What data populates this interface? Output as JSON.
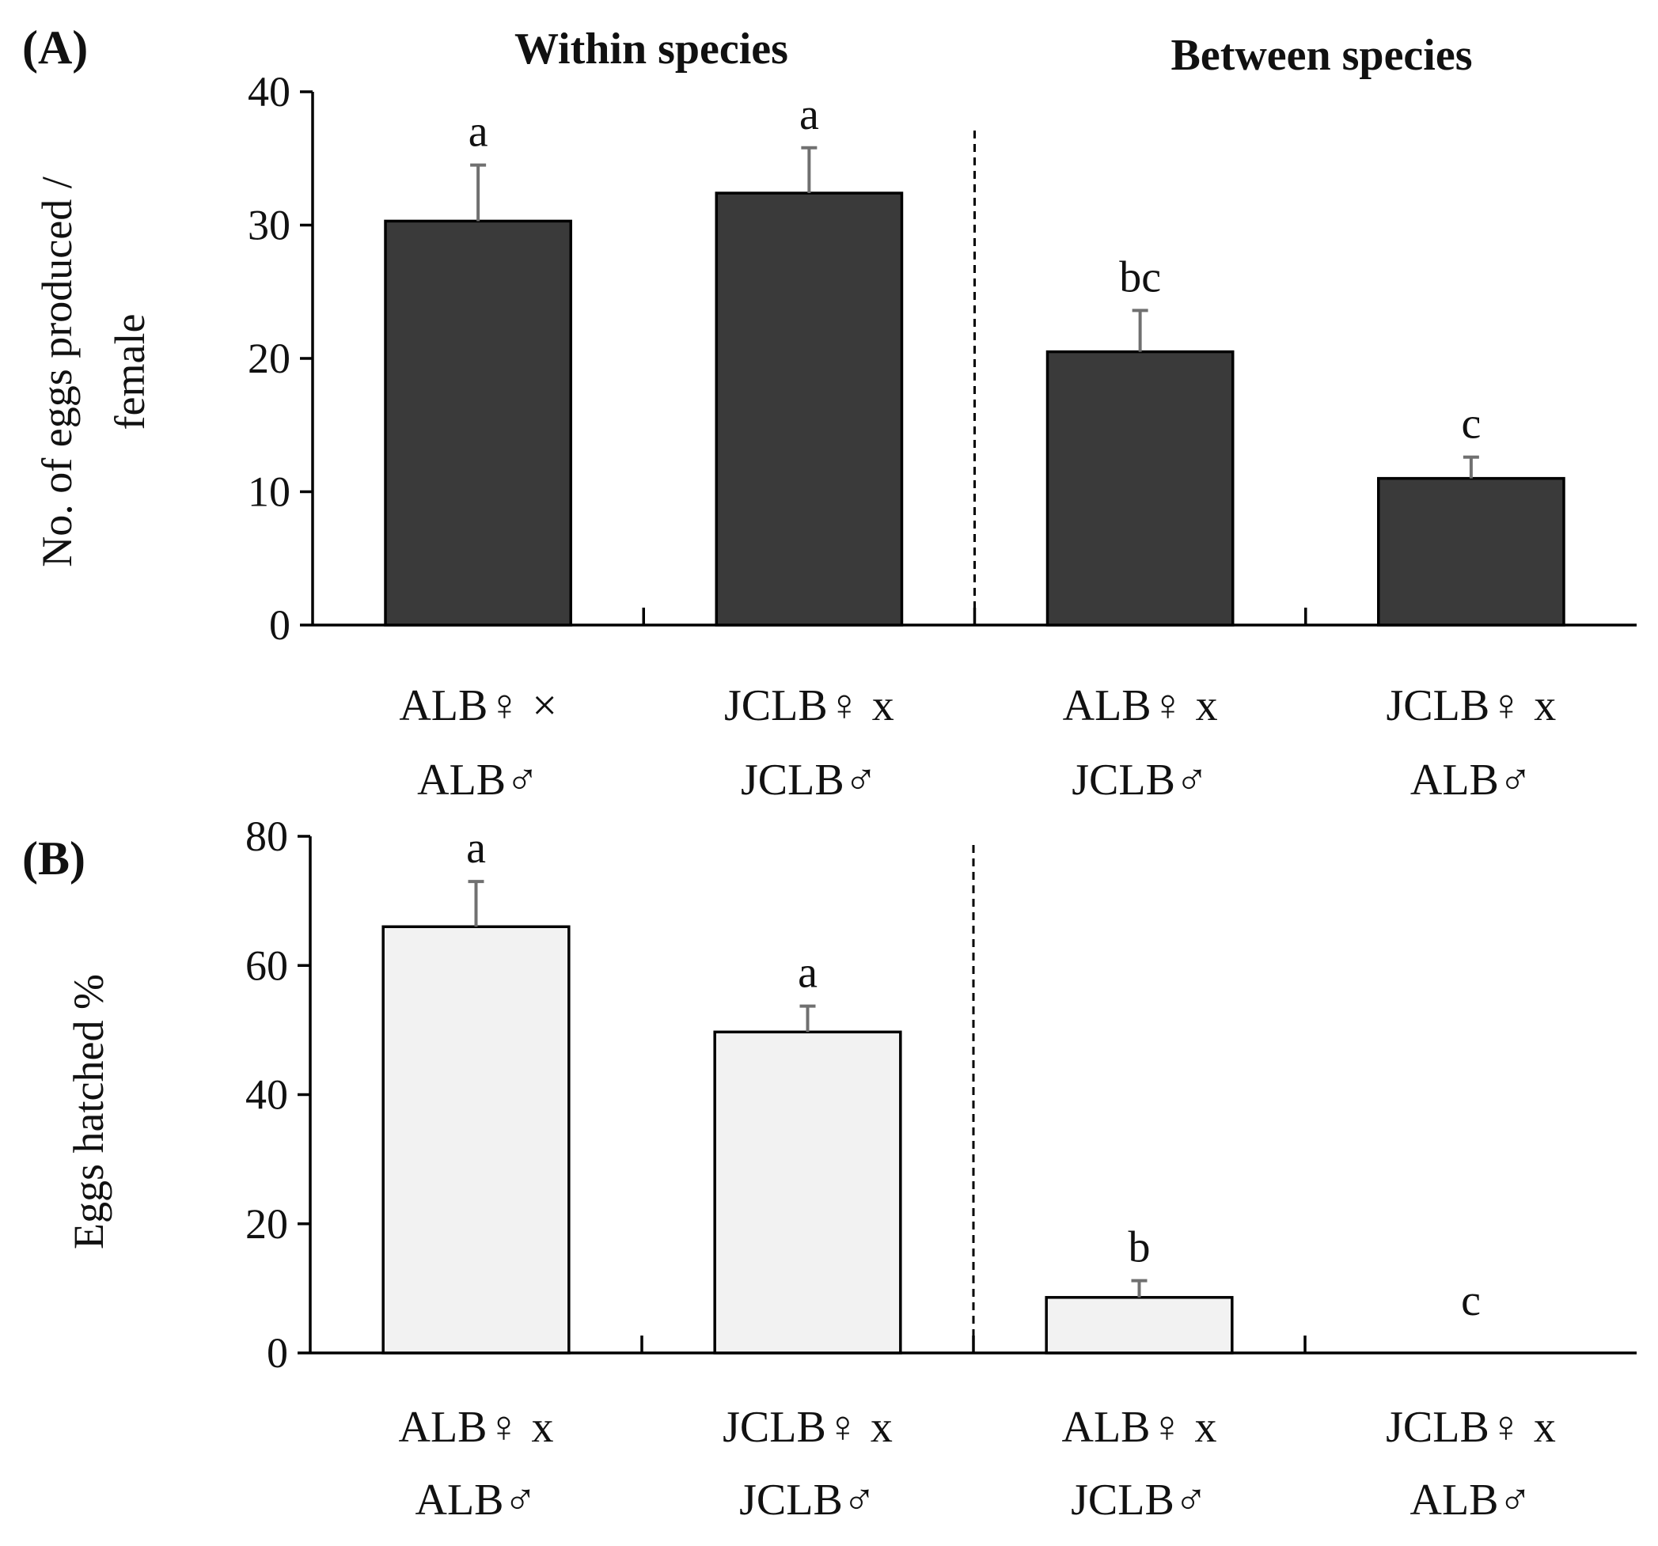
{
  "chart_data": [
    {
      "type": "bar",
      "panel_label": "(A)",
      "ylabel": "No. of eggs produced / female",
      "ylabel_lines": [
        "No. of eggs produced /",
        "female"
      ],
      "ylim": [
        0,
        40
      ],
      "yticks": [
        0,
        10,
        20,
        30,
        40
      ],
      "group_titles": [
        "Within species",
        "Between species"
      ],
      "categories": [
        [
          "ALB♀ ×",
          "ALB♂"
        ],
        [
          "JCLB♀ x",
          "JCLB♂"
        ],
        [
          "ALB♀ x",
          "JCLB♂"
        ],
        [
          "JCLB♀ x",
          "ALB♂"
        ]
      ],
      "values": [
        30.3,
        32.4,
        20.5,
        11.0
      ],
      "errors": [
        4.2,
        3.4,
        3.1,
        1.6
      ],
      "significance": [
        "a",
        "a",
        "bc",
        "c"
      ],
      "bar_color": "#3a3a3a"
    },
    {
      "type": "bar",
      "panel_label": "(B)",
      "ylabel": "Eggs hatched %",
      "ylim": [
        0,
        80
      ],
      "yticks": [
        0,
        20,
        40,
        60,
        80
      ],
      "categories": [
        [
          "ALB♀ x",
          "ALB♂"
        ],
        [
          "JCLB♀ x",
          "JCLB♂"
        ],
        [
          "ALB♀ x",
          "JCLB♂"
        ],
        [
          "JCLB♀ x",
          "ALB♂"
        ]
      ],
      "values": [
        66.0,
        49.7,
        8.6,
        0
      ],
      "errors": [
        7.0,
        4.0,
        2.6,
        0
      ],
      "significance": [
        "a",
        "a",
        "b",
        "c"
      ],
      "bar_color": "#f2f2f2"
    }
  ]
}
